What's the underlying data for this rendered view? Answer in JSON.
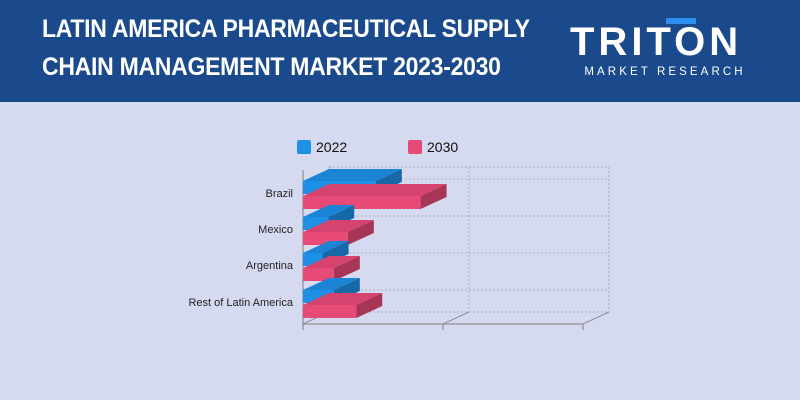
{
  "header": {
    "title_line1": "LATIN AMERICA PHARMACEUTICAL SUPPLY",
    "title_line2": "CHAIN MANAGEMENT MARKET 2023-2030",
    "background_color": "#1b4a8c"
  },
  "logo": {
    "word": "TRITON",
    "subtitle": "MARKET RESEARCH",
    "accent_color": "#2e8ff0"
  },
  "chart_data": {
    "type": "bar",
    "orientation": "horizontal",
    "style": "3d",
    "categories": [
      "Brazil",
      "Mexico",
      "Argentina",
      "Rest of Latin America"
    ],
    "series": [
      {
        "name": "2022",
        "values": [
          26,
          9,
          7,
          11
        ],
        "color": "#1e90e6"
      },
      {
        "name": "2030",
        "values": [
          42,
          16,
          11,
          19
        ],
        "color": "#e84a78"
      }
    ],
    "xlim": [
      0,
      100
    ],
    "grid": true,
    "legend": "top"
  }
}
